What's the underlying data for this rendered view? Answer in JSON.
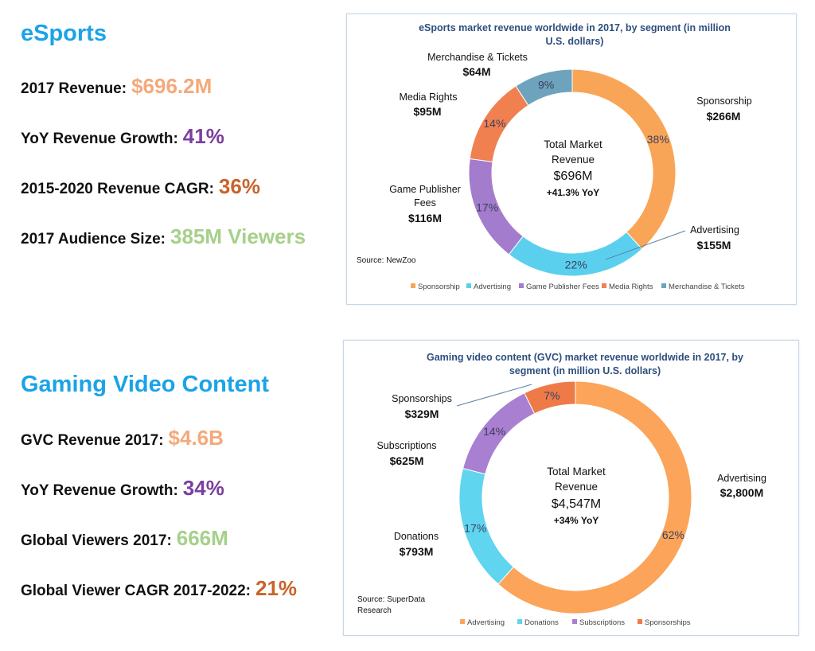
{
  "esports": {
    "title": "eSports",
    "stats": [
      {
        "label": "2017 Revenue",
        "sep": ":",
        "value": "$696.2M",
        "color": "#f5a97a"
      },
      {
        "label": "YoY Revenue Growth",
        "sep": ":",
        "value": "41%",
        "color": "#7b3fa0"
      },
      {
        "label": "2015-2020 Revenue CAGR",
        "sep": ":",
        "value": "36%",
        "color": "#c8632a"
      },
      {
        "label": "2017 Audience Size",
        "sep": ":",
        "value": "385M Viewers",
        "color": "#a6d08a"
      }
    ]
  },
  "gvc": {
    "title": "Gaming Video Content",
    "stats": [
      {
        "label": "GVC Revenue 2017",
        "sep": ":",
        "value": "$4.6B",
        "color": "#f5a97a"
      },
      {
        "label": "YoY Revenue Growth",
        "sep": ":",
        "value": "34%",
        "color": "#7b3fa0"
      },
      {
        "label": "Global Viewers 2017",
        "sep": ":",
        "value": "666M",
        "color": "#a6d08a"
      },
      {
        "label": "Global Viewer CAGR 2017-2022",
        "sep": ":",
        "value": "21%",
        "color": "#c8632a"
      }
    ]
  },
  "chart_data": [
    {
      "type": "pie",
      "variant": "donut",
      "title_lines": [
        "eSports market revenue worldwide in 2017, by segment (in million",
        "U.S. dollars)"
      ],
      "categories": [
        "Sponsorship",
        "Advertising",
        "Game Publisher Fees",
        "Media Rights",
        "Merchandise & Tickets"
      ],
      "values": [
        266,
        155,
        116,
        95,
        64
      ],
      "percent_labels": [
        "38%",
        "22%",
        "17%",
        "14%",
        "9%"
      ],
      "value_labels": [
        "$266M",
        "$155M",
        "$116M",
        "$95M",
        "$64M"
      ],
      "colors": [
        "#f9a557",
        "#5bd0ee",
        "#a47ccd",
        "#f18050",
        "#6ea3bd"
      ],
      "center": {
        "line1": "Total Market",
        "line2": "Revenue",
        "value": "$696M",
        "growth": "+41.3% YoY"
      },
      "source": "Source: NewZoo",
      "legend_position": "bottom"
    },
    {
      "type": "pie",
      "variant": "donut",
      "title_lines": [
        "Gaming video content (GVC) market revenue worldwide in 2017, by",
        "segment (in million U.S. dollars)"
      ],
      "categories": [
        "Advertising",
        "Donations",
        "Subscriptions",
        "Sponsorships"
      ],
      "values": [
        2800,
        793,
        625,
        329
      ],
      "percent_labels": [
        "62%",
        "17%",
        "14%",
        "7%"
      ],
      "value_labels": [
        "$2,800M",
        "$793M",
        "$625M",
        "$329M"
      ],
      "colors": [
        "#fba45a",
        "#5fd5ef",
        "#a97fd1",
        "#ee7b47"
      ],
      "center": {
        "line1": "Total Market",
        "line2": "Revenue",
        "value": "$4,547M",
        "growth": "+34% YoY"
      },
      "source_lines": [
        "Source: SuperData",
        "Research"
      ],
      "legend_position": "bottom"
    }
  ]
}
